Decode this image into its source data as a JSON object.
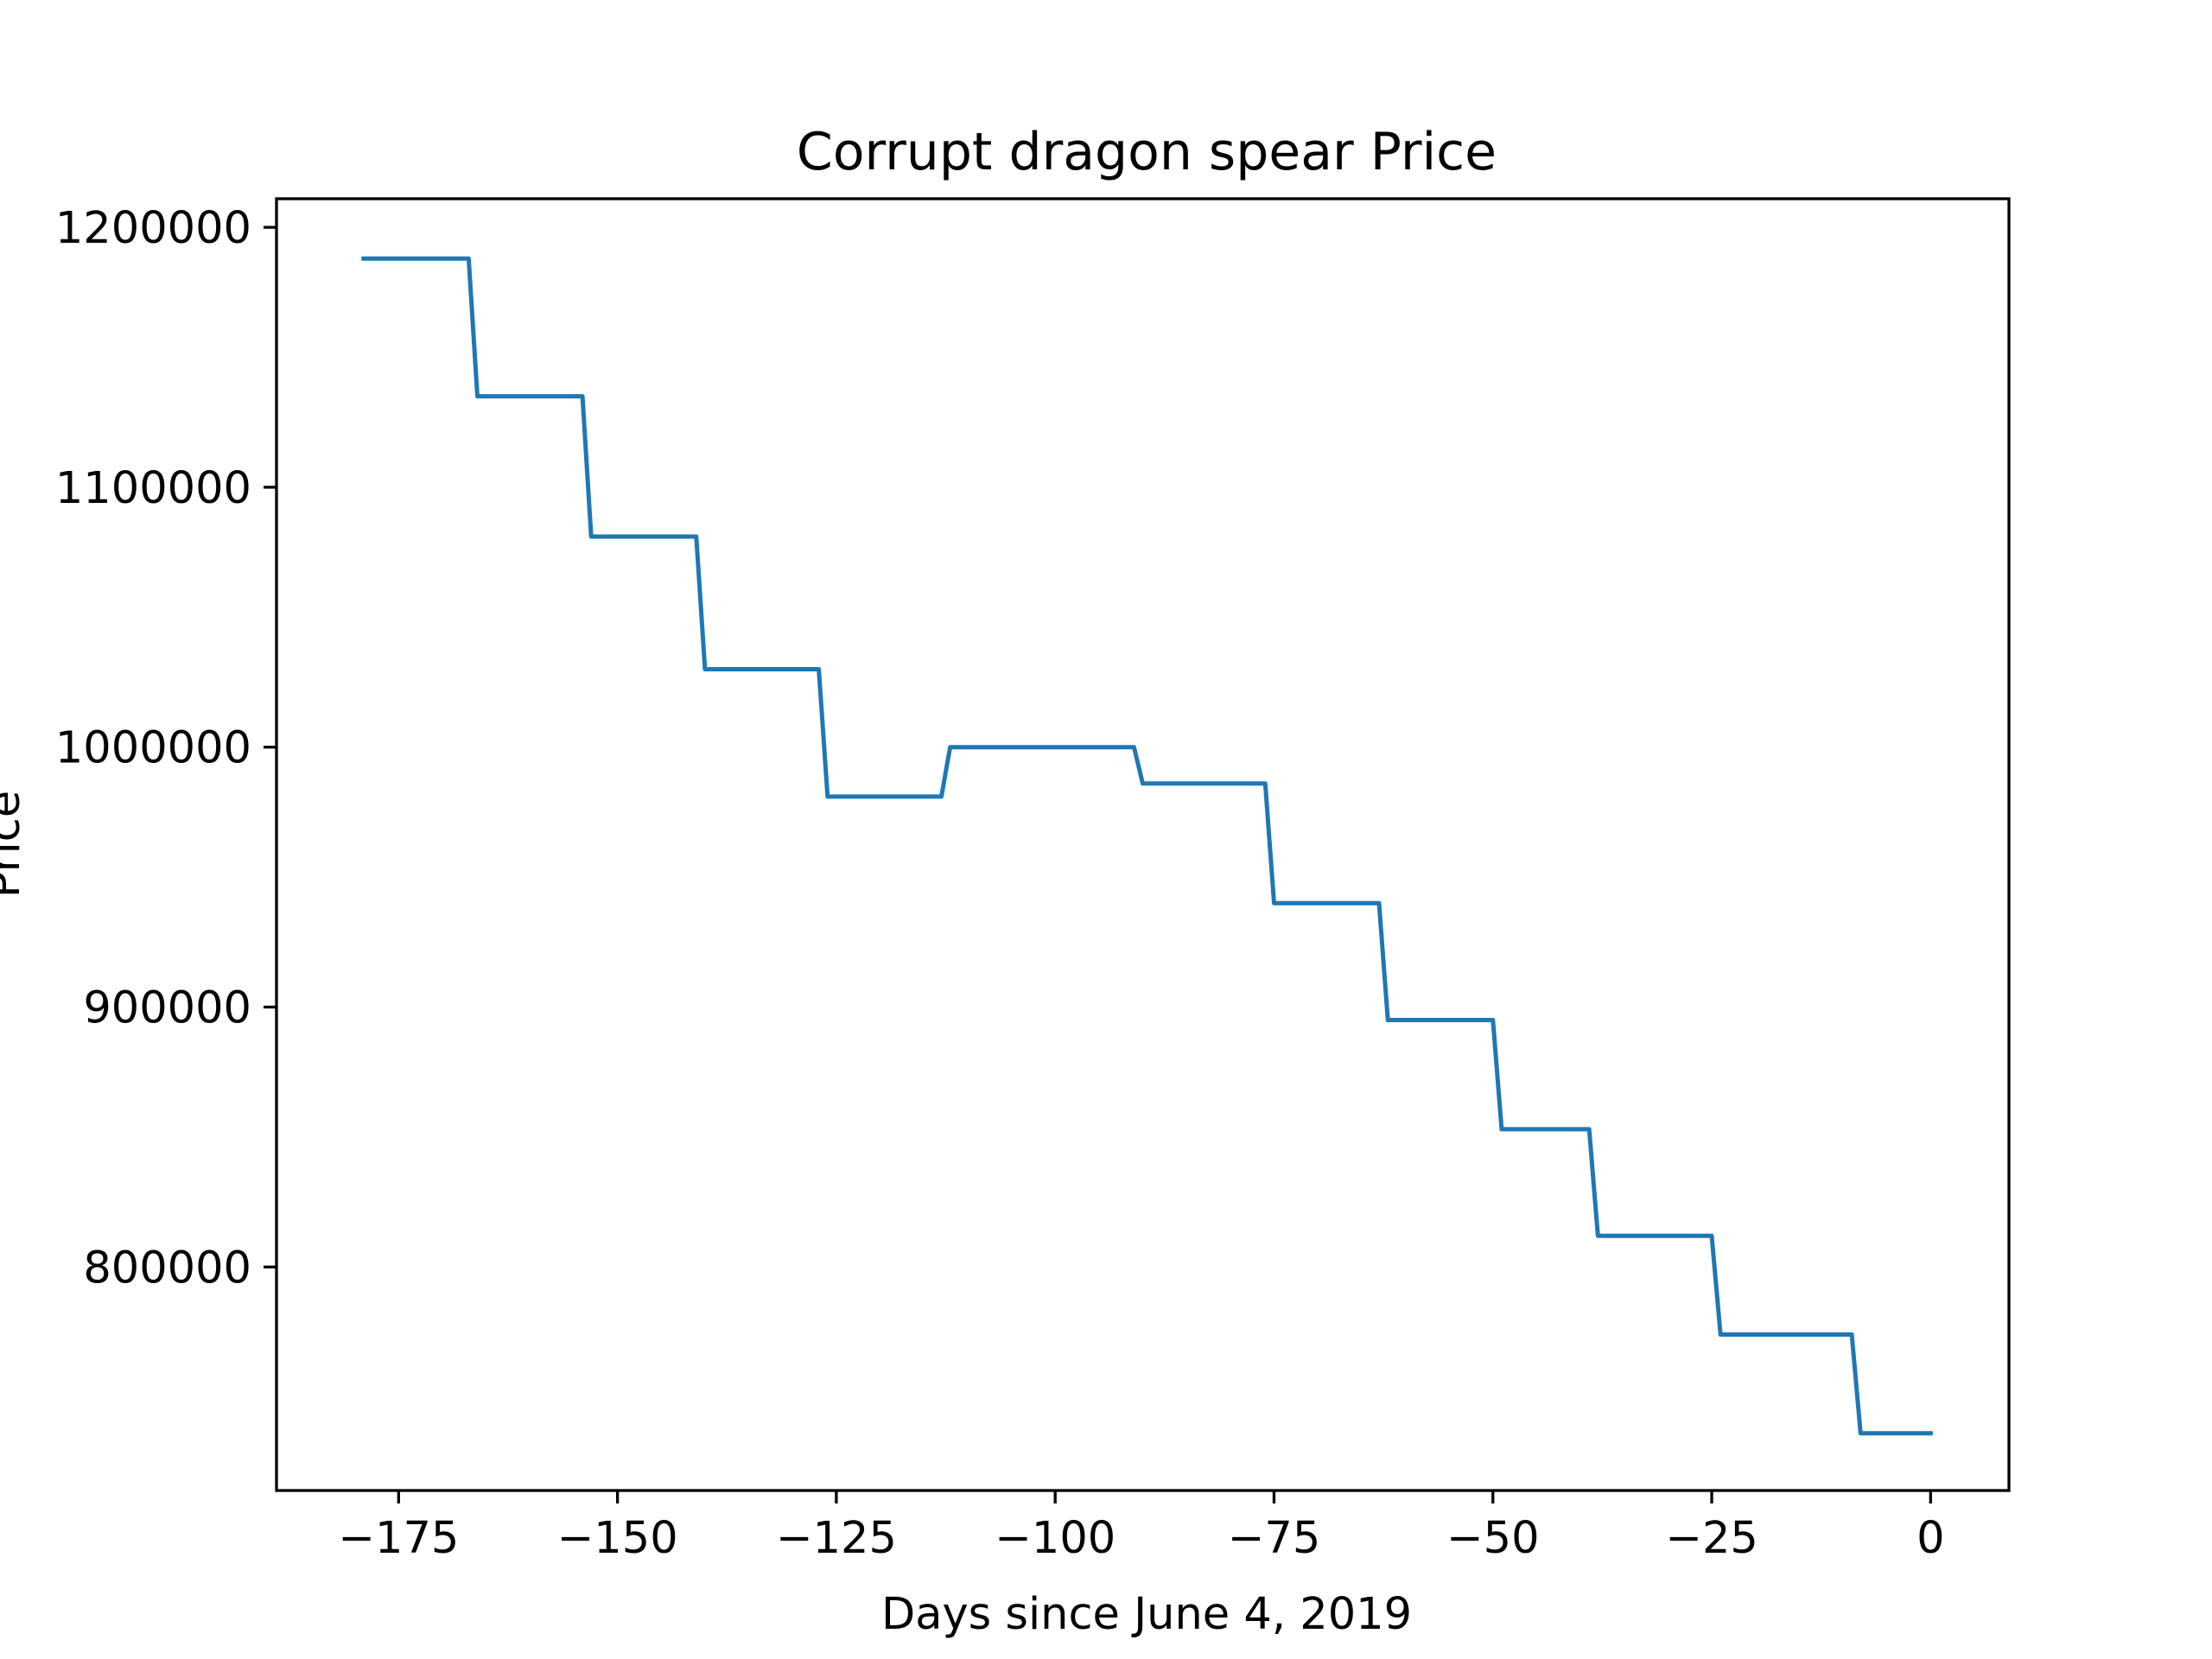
{
  "chart_data": {
    "type": "line",
    "title": "Corrupt dragon spear Price",
    "xlabel": "Days since June 4, 2019",
    "ylabel": "Price",
    "grid": false,
    "legend": "none",
    "xlim": [
      -188.95,
      8.95
    ],
    "ylim": [
      714000,
      1211000
    ],
    "x_ticks": [
      -175,
      -150,
      -125,
      -100,
      -75,
      -50,
      -25,
      0
    ],
    "x_tick_labels": [
      "−175",
      "−150",
      "−125",
      "−100",
      "−75",
      "−50",
      "−25",
      "0"
    ],
    "y_ticks": [
      800000,
      900000,
      1000000,
      1100000,
      1200000
    ],
    "y_tick_labels": [
      "800000",
      "900000",
      "1000000",
      "1100000",
      "1200000"
    ],
    "series": [
      {
        "name": "",
        "color": "#1f77b4",
        "x": [
          -179,
          -167,
          -166,
          -154,
          -153,
          -141,
          -140,
          -127,
          -126,
          -113,
          -112,
          -91,
          -90,
          -76,
          -75,
          -63,
          -62,
          -50,
          -49,
          -39,
          -38,
          -25,
          -24,
          -9,
          -8,
          0
        ],
        "y": [
          1188000,
          1188000,
          1135000,
          1135000,
          1081000,
          1081000,
          1030000,
          1030000,
          981000,
          981000,
          1000000,
          1000000,
          986000,
          986000,
          940000,
          940000,
          895000,
          895000,
          853000,
          853000,
          812000,
          812000,
          774000,
          774000,
          736000,
          736000
        ]
      }
    ]
  }
}
